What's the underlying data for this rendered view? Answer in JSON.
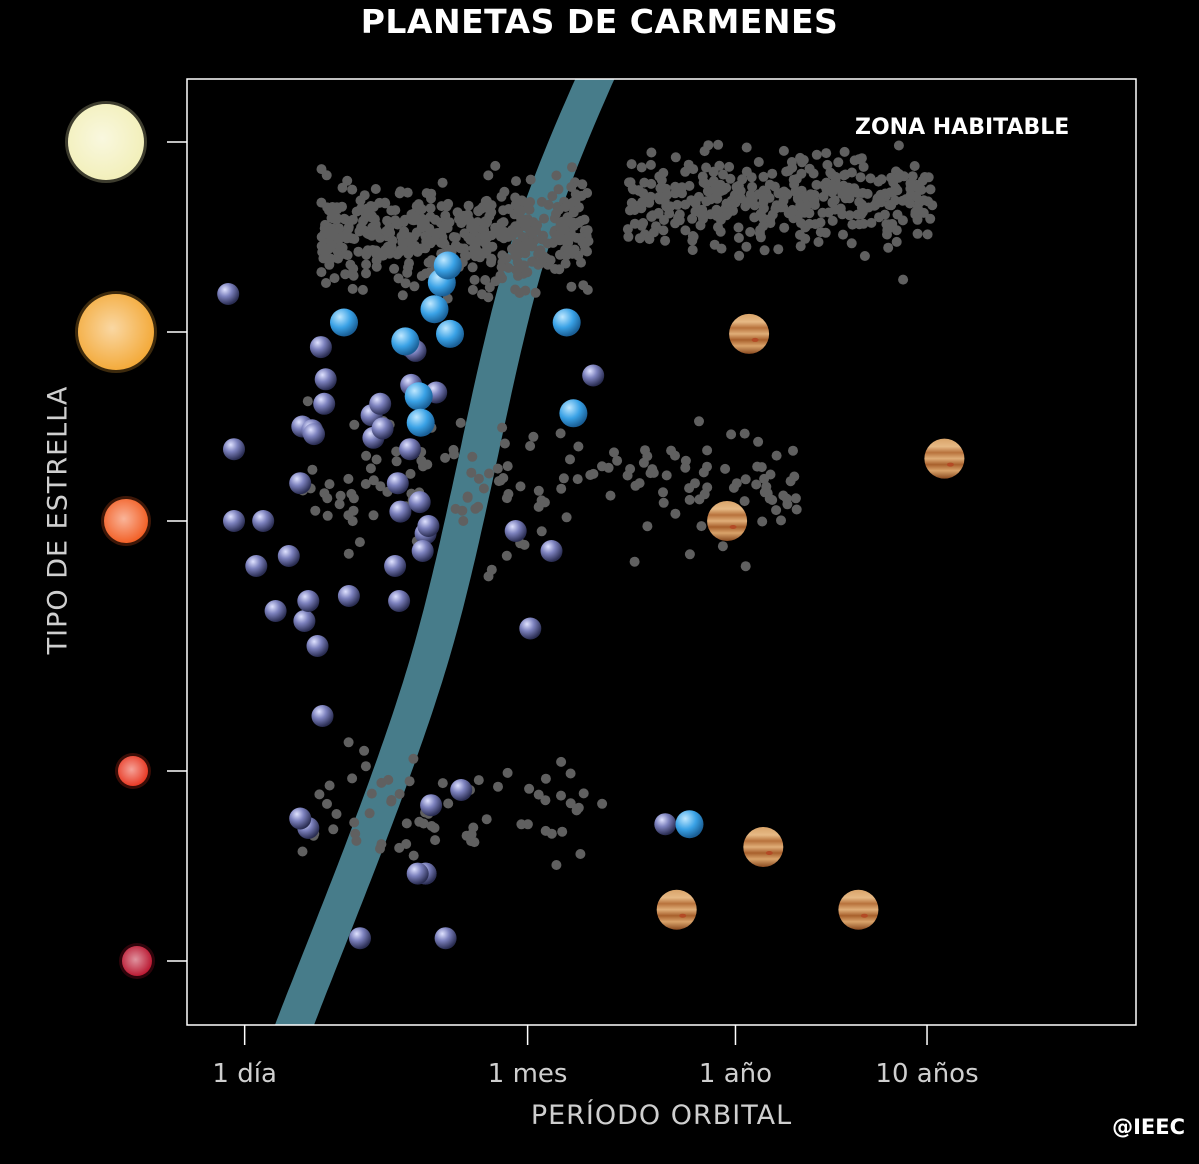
{
  "title": "PLANETAS DE CARMENES",
  "credit": "@IEEC",
  "colors": {
    "background": "#000000",
    "frame": "#ffffff",
    "background_planets": "#606060",
    "habitable_zone": "#4d8796",
    "rocky_planet": "#8a8ec8",
    "water_world": "#4aa8e8",
    "giant_planet": "#c98a4a"
  },
  "chart_data": {
    "type": "scatter",
    "title": "PLANETAS DE CARMENES",
    "xlabel": "PERÍODO ORBITAL",
    "ylabel": "TIPO DE ESTRELLA",
    "x_scale": "log",
    "x_unit": "days",
    "xlim": [
      0.5,
      45000
    ],
    "x_ticks": [
      {
        "value": 1,
        "label": "1 día"
      },
      {
        "value": 30,
        "label": "1 mes"
      },
      {
        "value": 365,
        "label": "1 año"
      },
      {
        "value": 3650,
        "label": "10 años"
      }
    ],
    "y_ticks": [
      {
        "star": "yellow-white-star",
        "color": "#f2efb8",
        "size": "large"
      },
      {
        "star": "yellow-orange-star",
        "color": "#f3a733",
        "size": "large"
      },
      {
        "star": "orange-red-star",
        "color": "#f25a1e",
        "size": "medium"
      },
      {
        "star": "red-star",
        "color": "#e8321c",
        "size": "small"
      },
      {
        "star": "deep-red-star",
        "color": "#b8102a",
        "size": "small"
      }
    ],
    "ylim": [
      -0.35,
      5.0
    ],
    "annotations": [
      "ZONA HABITABLE"
    ],
    "habitable_zone": {
      "center": [
        [
          115,
          4.85
        ],
        [
          30,
          3.42
        ],
        [
          9,
          1.42
        ],
        [
          1.8,
          -0.35
        ]
      ],
      "width_days_factor": 1.6
    },
    "series": [
      {
        "kind": "rocky",
        "points": [
          [
            0.82,
            3.2
          ],
          [
            0.88,
            2.0
          ],
          [
            0.88,
            2.38
          ],
          [
            1.25,
            2.0
          ],
          [
            1.45,
            1.64
          ],
          [
            1.15,
            1.82
          ],
          [
            1.7,
            1.86
          ],
          [
            2.05,
            1.6
          ],
          [
            2.15,
            1.68
          ],
          [
            2.4,
            1.5
          ],
          [
            1.95,
            2.2
          ],
          [
            2.0,
            2.5
          ],
          [
            2.25,
            2.48
          ],
          [
            2.3,
            2.46
          ],
          [
            2.6,
            2.62
          ],
          [
            2.65,
            2.75
          ],
          [
            2.5,
            2.92
          ],
          [
            2.55,
            1.22
          ],
          [
            2.15,
            0.7
          ],
          [
            1.95,
            0.75
          ],
          [
            4.0,
            0.12
          ],
          [
            3.5,
            1.7
          ],
          [
            4.6,
            2.56
          ],
          [
            4.7,
            2.44
          ],
          [
            5.1,
            2.62
          ],
          [
            5.25,
            2.49
          ],
          [
            6.4,
            1.68
          ],
          [
            6.1,
            1.82
          ],
          [
            6.5,
            2.05
          ],
          [
            6.3,
            2.2
          ],
          [
            7.3,
            2.38
          ],
          [
            7.4,
            2.72
          ],
          [
            7.4,
            2.92
          ],
          [
            7.8,
            2.9
          ],
          [
            8.2,
            2.1
          ],
          [
            8.8,
            1.95
          ],
          [
            8.5,
            1.88
          ],
          [
            9.1,
            1.98
          ],
          [
            10.0,
            2.68
          ],
          [
            9.4,
            0.82
          ],
          [
            13.5,
            0.9
          ],
          [
            11.2,
            0.12
          ],
          [
            8.8,
            0.46
          ],
          [
            8.8,
            0.46
          ],
          [
            8.0,
            0.46
          ],
          [
            26,
            1.96
          ],
          [
            31,
            1.57
          ],
          [
            40,
            1.88
          ],
          [
            66,
            2.77
          ],
          [
            157,
            0.72
          ]
        ]
      },
      {
        "kind": "water",
        "points": [
          [
            3.3,
            3.05
          ],
          [
            6.9,
            2.95
          ],
          [
            8.1,
            2.66
          ],
          [
            8.3,
            2.52
          ],
          [
            9.8,
            3.12
          ],
          [
            10.7,
            3.26
          ],
          [
            11.8,
            2.99
          ],
          [
            11.5,
            3.35
          ],
          [
            48,
            3.05
          ],
          [
            52,
            2.57
          ],
          [
            210,
            0.72
          ]
        ]
      },
      {
        "kind": "giant",
        "points": [
          [
            430,
            2.99
          ],
          [
            330,
            2.0
          ],
          [
            4500,
            2.33
          ],
          [
            510,
            0.6
          ],
          [
            180,
            0.27
          ],
          [
            1600,
            0.27
          ]
        ]
      },
      {
        "kind": "background",
        "count": 1100,
        "note": ""
      }
    ]
  }
}
